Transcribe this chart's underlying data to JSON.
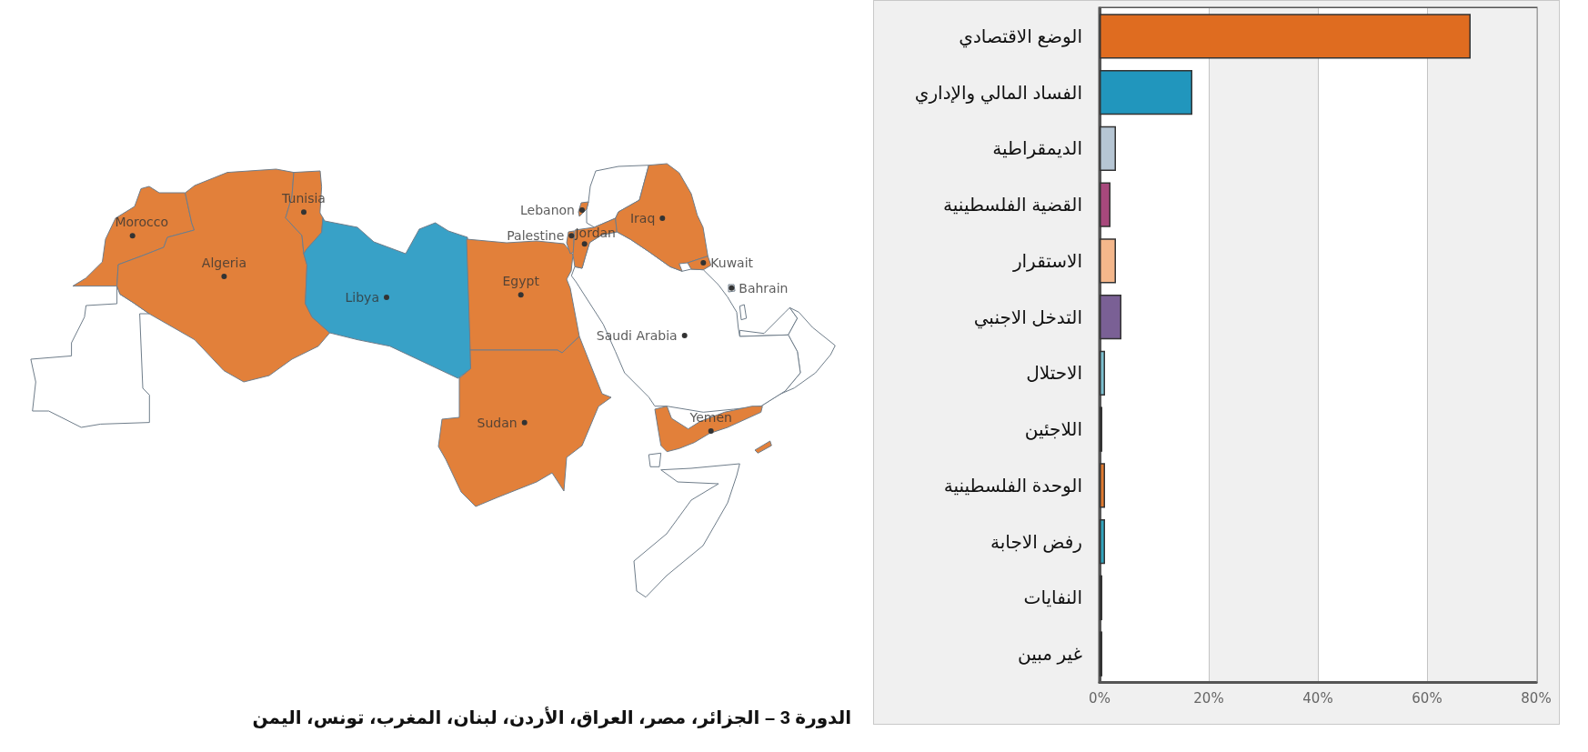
{
  "chart_data": [
    {
      "type": "other",
      "title": "الدورة 3 – الجزائر، مصر، العراق، الأردن، لبنان، المغرب، تونس، اليمن",
      "categories": [
        "Morocco",
        "Algeria",
        "Tunisia",
        "Libya",
        "Egypt",
        "Sudan",
        "Lebanon",
        "Palestine",
        "Jordan",
        "Iraq",
        "Kuwait",
        "Bahrain",
        "Saudi Arabia",
        "Yemen"
      ],
      "colors": [
        "#e2803a",
        "#e2803a",
        "#e2803a",
        "#38a1c7",
        "#e2803a",
        "#e2803a",
        "#e2803a",
        "#e2803a",
        "#e2803a",
        "#e2803a",
        "#e2803a",
        "#ffffff",
        "#ffffff",
        "#e2803a"
      ]
    },
    {
      "type": "bar",
      "orientation": "horizontal",
      "categories": [
        "الوضع الاقتصادي",
        "الفساد المالي والإداري",
        "الديمقراطية",
        "القضية الفلسطينية",
        "الاستقرار",
        "التدخل الاجنبي",
        "الاحتلال",
        "اللاجئين",
        "الوحدة الفلسطينية",
        "رفض الاجابة",
        "النفايات",
        "غير مبين"
      ],
      "values": [
        68,
        17,
        3,
        2,
        3,
        4,
        1,
        0.5,
        1,
        1,
        0.5,
        0.5
      ],
      "colors": [
        "#df6c20",
        "#2196bd",
        "#b6c6d4",
        "#a8487c",
        "#f4b78b",
        "#7a6095",
        "#7cc0d0",
        "#555555",
        "#e07a30",
        "#31a4bd",
        "#555555",
        "#555555"
      ],
      "xlim": [
        0,
        80
      ],
      "xticks": [
        {
          "value": 0,
          "label": "0%"
        },
        {
          "value": 20,
          "label": "20%"
        },
        {
          "value": 40,
          "label": "40%"
        },
        {
          "value": 60,
          "label": "60%"
        },
        {
          "value": 80,
          "label": "80%"
        }
      ],
      "grid": "x"
    }
  ]
}
